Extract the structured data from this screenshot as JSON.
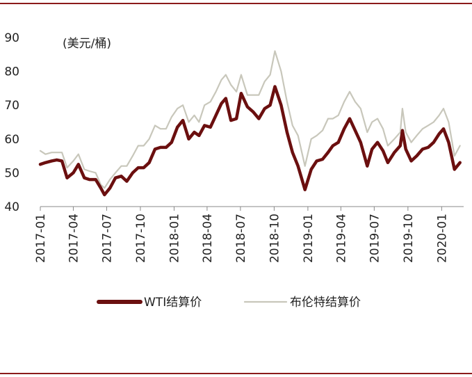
{
  "chart_data": {
    "type": "line",
    "title": "",
    "ylabel": "(美元/桶)",
    "xlabel": "",
    "ylim": [
      40,
      90
    ],
    "yticks": [
      40,
      50,
      60,
      70,
      80,
      90
    ],
    "xlim": [
      "2017-01",
      "2020-03"
    ],
    "xticks": [
      "2017-01",
      "2017-04",
      "2017-07",
      "2017-10",
      "2018-01",
      "2018-04",
      "2018-07",
      "2018-10",
      "2019-01",
      "2019-04",
      "2019-07",
      "2019-10",
      "2020-01"
    ],
    "grid": false,
    "legend": "bottom",
    "series": [
      {
        "name": "WTI结算价",
        "color": "#6b0f0f",
        "x": [
          "2017-01-01",
          "2017-01-15",
          "2017-02-01",
          "2017-02-15",
          "2017-03-01",
          "2017-03-15",
          "2017-04-01",
          "2017-04-15",
          "2017-05-01",
          "2017-05-15",
          "2017-06-01",
          "2017-06-15",
          "2017-06-25",
          "2017-07-10",
          "2017-07-25",
          "2017-08-10",
          "2017-08-25",
          "2017-09-10",
          "2017-09-25",
          "2017-10-10",
          "2017-10-25",
          "2017-11-10",
          "2017-11-25",
          "2017-12-10",
          "2017-12-25",
          "2018-01-10",
          "2018-01-25",
          "2018-02-10",
          "2018-02-25",
          "2018-03-10",
          "2018-03-25",
          "2018-04-10",
          "2018-04-25",
          "2018-05-10",
          "2018-05-22",
          "2018-06-05",
          "2018-06-20",
          "2018-07-03",
          "2018-07-20",
          "2018-08-05",
          "2018-08-20",
          "2018-09-05",
          "2018-09-20",
          "2018-10-03",
          "2018-10-20",
          "2018-11-05",
          "2018-11-20",
          "2018-12-05",
          "2018-12-24",
          "2019-01-10",
          "2019-01-25",
          "2019-02-10",
          "2019-02-25",
          "2019-03-10",
          "2019-03-25",
          "2019-04-10",
          "2019-04-25",
          "2019-05-10",
          "2019-05-25",
          "2019-06-12",
          "2019-06-25",
          "2019-07-10",
          "2019-07-25",
          "2019-08-07",
          "2019-08-25",
          "2019-09-10",
          "2019-09-16",
          "2019-09-25",
          "2019-10-10",
          "2019-10-25",
          "2019-11-10",
          "2019-11-25",
          "2019-12-10",
          "2019-12-25",
          "2020-01-06",
          "2020-01-20",
          "2020-02-05",
          "2020-02-20"
        ],
        "values": [
          52.5,
          53,
          53.5,
          53.8,
          53.5,
          48.5,
          50,
          52.5,
          48.5,
          48,
          48,
          45.5,
          43.5,
          45.5,
          48.5,
          49,
          47.5,
          50,
          51.5,
          51.5,
          53,
          57,
          57.5,
          57.5,
          59,
          63.5,
          65.5,
          60,
          62,
          61,
          64,
          63.5,
          67,
          70.5,
          72,
          65.5,
          66,
          73.5,
          69.5,
          68,
          66,
          69,
          70,
          75.5,
          70,
          62,
          56,
          52,
          45,
          51,
          53.5,
          54,
          56,
          58,
          59,
          63,
          66,
          62.5,
          59,
          52,
          57,
          59,
          56.5,
          53,
          56,
          58,
          62.5,
          57,
          53.5,
          55,
          57,
          57.5,
          59,
          61.5,
          63,
          59,
          51,
          53
        ]
      },
      {
        "name": "布伦特结算价",
        "color": "#c8c7bb",
        "x": [
          "2017-01-01",
          "2017-01-15",
          "2017-02-01",
          "2017-02-15",
          "2017-03-01",
          "2017-03-15",
          "2017-04-01",
          "2017-04-15",
          "2017-05-01",
          "2017-05-15",
          "2017-06-01",
          "2017-06-15",
          "2017-06-25",
          "2017-07-10",
          "2017-07-25",
          "2017-08-10",
          "2017-08-25",
          "2017-09-10",
          "2017-09-25",
          "2017-10-10",
          "2017-10-25",
          "2017-11-10",
          "2017-11-25",
          "2017-12-10",
          "2017-12-25",
          "2018-01-10",
          "2018-01-25",
          "2018-02-10",
          "2018-02-25",
          "2018-03-10",
          "2018-03-25",
          "2018-04-10",
          "2018-04-25",
          "2018-05-10",
          "2018-05-22",
          "2018-06-05",
          "2018-06-20",
          "2018-07-03",
          "2018-07-20",
          "2018-08-05",
          "2018-08-20",
          "2018-09-05",
          "2018-09-20",
          "2018-10-03",
          "2018-10-20",
          "2018-11-05",
          "2018-11-20",
          "2018-12-05",
          "2018-12-24",
          "2019-01-10",
          "2019-01-25",
          "2019-02-10",
          "2019-02-25",
          "2019-03-10",
          "2019-03-25",
          "2019-04-10",
          "2019-04-25",
          "2019-05-10",
          "2019-05-25",
          "2019-06-12",
          "2019-06-25",
          "2019-07-10",
          "2019-07-25",
          "2019-08-07",
          "2019-08-25",
          "2019-09-10",
          "2019-09-16",
          "2019-09-25",
          "2019-10-10",
          "2019-10-25",
          "2019-11-10",
          "2019-11-25",
          "2019-12-10",
          "2019-12-25",
          "2020-01-06",
          "2020-01-20",
          "2020-02-05",
          "2020-02-20"
        ],
        "values": [
          56.5,
          55.5,
          56,
          56,
          56,
          51.5,
          53.5,
          55.5,
          51,
          50.5,
          50,
          46.5,
          45.5,
          48,
          50,
          52,
          52,
          55,
          58,
          58,
          60,
          64,
          63,
          63,
          66.5,
          69,
          70,
          65,
          67,
          65,
          70,
          71,
          74,
          77.5,
          79,
          76,
          74,
          79,
          73,
          73,
          73,
          77,
          79,
          86,
          80,
          71,
          64,
          61,
          52,
          60,
          61,
          62.5,
          66,
          66,
          67,
          71,
          74,
          71,
          69,
          62,
          65,
          66,
          63,
          58,
          60,
          62,
          69,
          62,
          59,
          61,
          63,
          64,
          65,
          67,
          69,
          65,
          55,
          58
        ]
      }
    ]
  }
}
